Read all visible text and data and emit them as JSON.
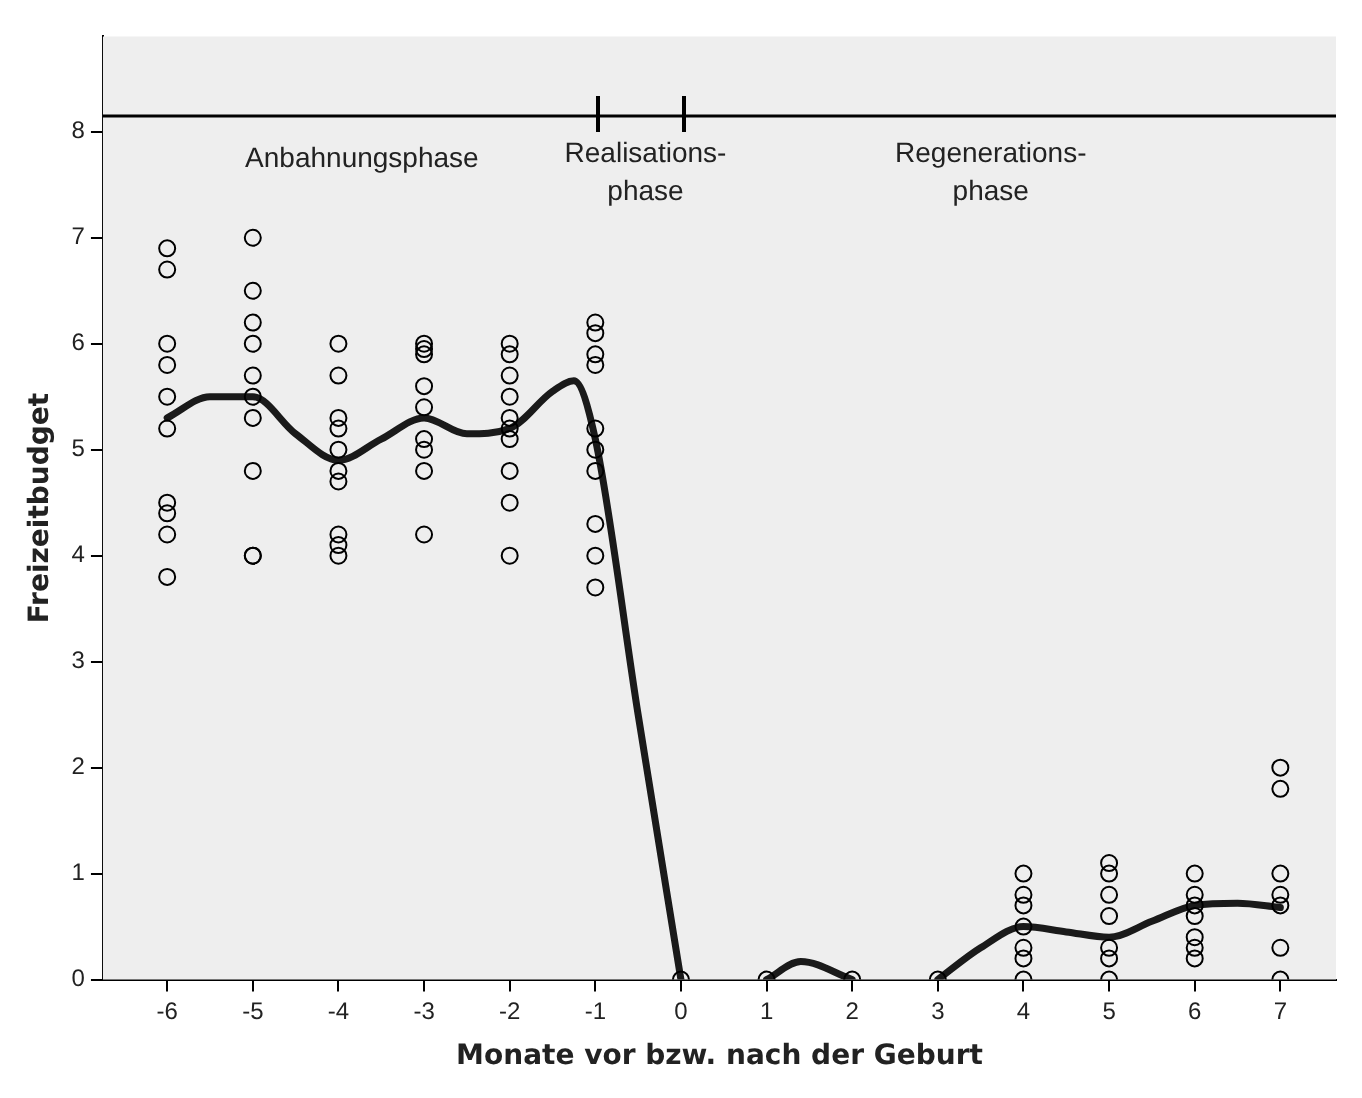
{
  "chart_data": {
    "type": "scatter",
    "xlabel": "Monate vor bzw. nach der Geburt",
    "ylabel": "Freizeitbudget",
    "xlim": [
      -6.75,
      7.65
    ],
    "xticks": [
      -6,
      -5,
      -4,
      -3,
      -2,
      -1,
      0,
      1,
      2,
      3,
      4,
      5,
      6,
      7
    ],
    "ylim": [
      0,
      8.9
    ],
    "yticks": [
      0,
      1,
      2,
      3,
      4,
      5,
      6,
      7,
      8
    ],
    "grid": false,
    "legend": false,
    "marker": "circle",
    "series": [
      {
        "color": "#000000",
        "x": [
          -6,
          -6,
          -6,
          -6,
          -6,
          -6,
          -6,
          -6,
          -6,
          -6,
          -5,
          -5,
          -5,
          -5,
          -5,
          -5,
          -5,
          -5,
          -5,
          -5,
          -4,
          -4,
          -4,
          -4,
          -4,
          -4,
          -4,
          -4,
          -4,
          -4,
          -3,
          -3,
          -3,
          -3,
          -3,
          -3,
          -3,
          -3,
          -3,
          -2,
          -2,
          -2,
          -2,
          -2,
          -2,
          -2,
          -2,
          -2,
          -2,
          -1,
          -1,
          -1,
          -1,
          -1,
          -1,
          -1,
          -1,
          -1,
          -1,
          0,
          1,
          2,
          3,
          4,
          4,
          4,
          4,
          4,
          4,
          4,
          5,
          5,
          5,
          5,
          5,
          5,
          5,
          6,
          6,
          6,
          6,
          6,
          6,
          6,
          7,
          7,
          7,
          7,
          7,
          7,
          7
        ],
        "values": [
          6.9,
          6.7,
          6.0,
          5.8,
          5.5,
          5.2,
          4.5,
          4.4,
          4.2,
          3.8,
          7.0,
          6.5,
          6.2,
          6.0,
          5.7,
          5.5,
          5.3,
          4.8,
          4.0,
          4.0,
          6.0,
          5.7,
          5.3,
          5.2,
          5.0,
          4.8,
          4.7,
          4.2,
          4.1,
          4.0,
          6.0,
          5.95,
          5.9,
          5.6,
          5.4,
          5.1,
          5.0,
          4.8,
          4.2,
          6.0,
          5.9,
          5.7,
          5.5,
          5.3,
          5.2,
          5.1,
          4.8,
          4.5,
          4.0,
          6.2,
          6.1,
          5.9,
          5.8,
          5.2,
          5.0,
          4.8,
          4.3,
          4.0,
          3.7,
          0,
          0,
          0,
          0,
          1.0,
          0.8,
          0.7,
          0.5,
          0.3,
          0.2,
          0,
          1.1,
          1.0,
          0.8,
          0.6,
          0.3,
          0.2,
          0,
          1.0,
          0.8,
          0.7,
          0.6,
          0.4,
          0.3,
          0.2,
          2.0,
          1.8,
          1.0,
          0.8,
          0.7,
          0.3,
          0
        ]
      },
      {
        "type": "line",
        "color": "#1a1a1a",
        "marker": "none",
        "x": [
          -6,
          -5.5,
          -5,
          -4.5,
          -4,
          -3.5,
          -3,
          -2.5,
          -2,
          -1.5,
          -1.25,
          -1,
          -0.5,
          0,
          0.5,
          1,
          1.4,
          2,
          2.5,
          3,
          3.5,
          4,
          4.5,
          5,
          5.5,
          6,
          6.5,
          7
        ],
        "values": [
          5.3,
          5.5,
          5.5,
          5.15,
          4.9,
          5.1,
          5.3,
          5.15,
          5.2,
          5.55,
          5.65,
          5.1,
          2.5,
          0,
          null,
          0,
          0.17,
          0,
          null,
          0,
          0.3,
          0.5,
          0.45,
          0.4,
          0.55,
          0.7,
          0.72,
          0.68
        ]
      }
    ],
    "ref_lines": [
      {
        "axis": "y",
        "value": 8.15,
        "color": "#000000"
      }
    ],
    "annotations": [
      "Anbahnungsphase",
      "Realisations-\nphase",
      "Regenerations-\nphase"
    ]
  }
}
